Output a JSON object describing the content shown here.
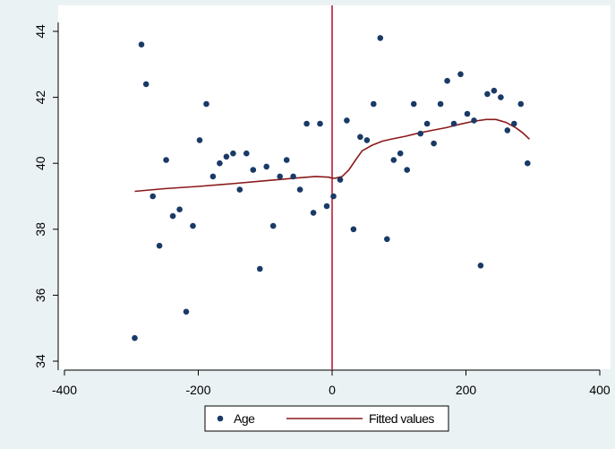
{
  "chart_data": {
    "type": "scatter",
    "title": "",
    "xlabel": "",
    "ylabel": "",
    "xlim": [
      -400,
      400
    ],
    "ylim": [
      34,
      44
    ],
    "xticks": [
      -400,
      -200,
      0,
      200,
      400
    ],
    "yticks": [
      34,
      36,
      38,
      40,
      42,
      44
    ],
    "grid": "none",
    "vertical_line": {
      "x": 0,
      "color": "#b0102a"
    },
    "legend_position": "bottom",
    "colors": {
      "markers": "#1a3a66",
      "fit": "#8b1a1a",
      "cutoff": "#b0102a",
      "plot_bg": "#ffffff",
      "outer_bg": "#eaf2f3"
    },
    "series": [
      {
        "name": "Age",
        "kind": "markers",
        "x": [
          -295,
          -285,
          -278,
          -268,
          -258,
          -248,
          -238,
          -228,
          -218,
          -208,
          -198,
          -188,
          -178,
          -168,
          -158,
          -148,
          -138,
          -128,
          -118,
          -108,
          -98,
          -88,
          -78,
          -68,
          -58,
          -48,
          -38,
          -28,
          -18,
          -8,
          2,
          12,
          22,
          32,
          42,
          52,
          62,
          72,
          82,
          92,
          102,
          112,
          122,
          132,
          142,
          152,
          162,
          172,
          182,
          192,
          202,
          212,
          222,
          232,
          242,
          252,
          262,
          272,
          282,
          292
        ],
        "y": [
          34.7,
          43.6,
          42.4,
          39.0,
          37.5,
          40.1,
          38.4,
          38.6,
          35.5,
          38.1,
          40.7,
          41.8,
          39.6,
          40.0,
          40.2,
          40.3,
          39.2,
          40.3,
          39.8,
          36.8,
          39.9,
          38.1,
          39.6,
          40.1,
          39.6,
          39.2,
          41.2,
          38.5,
          41.2,
          38.7,
          39.0,
          39.5,
          41.3,
          38.0,
          40.8,
          40.7,
          41.8,
          43.8,
          37.7,
          40.1,
          40.3,
          39.8,
          41.8,
          40.9,
          41.2,
          40.6,
          41.8,
          42.5,
          41.2,
          42.7,
          41.5,
          41.3,
          36.9,
          42.1,
          42.2,
          42.0,
          41.0,
          41.2,
          41.8,
          40.0
        ]
      },
      {
        "name": "Fitted values",
        "kind": "line",
        "x": [
          -295,
          -250,
          -200,
          -150,
          -100,
          -50,
          -25,
          -5,
          0,
          5,
          15,
          25,
          35,
          45,
          60,
          75,
          90,
          110,
          130,
          150,
          170,
          190,
          210,
          230,
          245,
          260,
          275,
          285,
          295
        ],
        "y": [
          39.15,
          39.23,
          39.3,
          39.38,
          39.47,
          39.56,
          39.6,
          39.58,
          39.55,
          39.55,
          39.6,
          39.8,
          40.1,
          40.38,
          40.55,
          40.67,
          40.74,
          40.82,
          40.92,
          41.0,
          41.08,
          41.18,
          41.27,
          41.33,
          41.33,
          41.24,
          41.07,
          40.92,
          40.73
        ]
      }
    ]
  }
}
